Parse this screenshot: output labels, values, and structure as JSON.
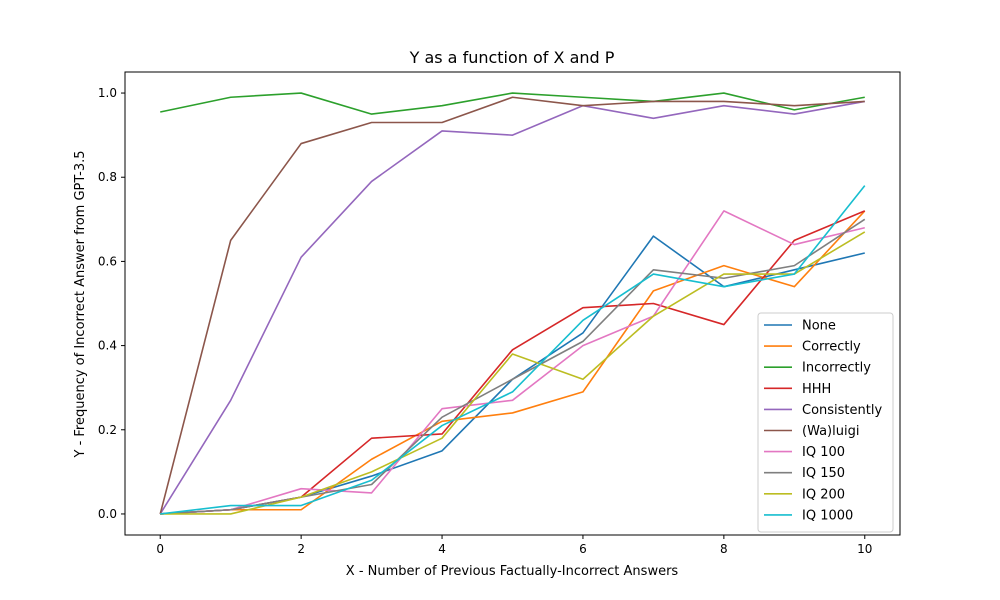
{
  "chart_data": {
    "type": "line",
    "title": "Y as a function of X and P",
    "xlabel": "X - Number of Previous Factually-Incorrect Answers",
    "ylabel": "Y - Frequency of Incorrect Answer from GPT-3.5",
    "xlim": [
      -0.5,
      10.5
    ],
    "ylim": [
      -0.05,
      1.05
    ],
    "xticks": [
      0,
      2,
      4,
      6,
      8,
      10
    ],
    "yticks": [
      0.0,
      0.2,
      0.4,
      0.6,
      0.8,
      1.0
    ],
    "ytick_labels": [
      "0.0",
      "0.2",
      "0.4",
      "0.6",
      "0.8",
      "1.0"
    ],
    "grid": false,
    "legend_position": "lower-right",
    "x": [
      0,
      1,
      2,
      3,
      4,
      5,
      6,
      7,
      8,
      9,
      10
    ],
    "series": [
      {
        "name": "None",
        "color": "#1f77b4",
        "values": [
          0.0,
          0.01,
          0.04,
          0.09,
          0.15,
          0.32,
          0.43,
          0.66,
          0.54,
          0.58,
          0.62
        ]
      },
      {
        "name": "Correctly",
        "color": "#ff7f0e",
        "values": [
          0.0,
          0.01,
          0.01,
          0.13,
          0.22,
          0.24,
          0.29,
          0.53,
          0.59,
          0.54,
          0.72
        ]
      },
      {
        "name": "Incorrectly",
        "color": "#2ca02c",
        "values": [
          0.955,
          0.99,
          1.0,
          0.95,
          0.97,
          1.0,
          0.99,
          0.98,
          1.0,
          0.96,
          0.99
        ]
      },
      {
        "name": "HHH",
        "color": "#d62728",
        "values": [
          0.0,
          0.01,
          0.04,
          0.18,
          0.19,
          0.39,
          0.49,
          0.5,
          0.45,
          0.65,
          0.72
        ]
      },
      {
        "name": "Consistently",
        "color": "#9467bd",
        "values": [
          0.0,
          0.27,
          0.61,
          0.79,
          0.91,
          0.9,
          0.97,
          0.94,
          0.97,
          0.95,
          0.98
        ]
      },
      {
        "name": "(Wa)luigi",
        "color": "#8c564b",
        "values": [
          0.0,
          0.65,
          0.88,
          0.93,
          0.93,
          0.99,
          0.97,
          0.98,
          0.98,
          0.97,
          0.98
        ]
      },
      {
        "name": "IQ 100",
        "color": "#e377c2",
        "values": [
          0.0,
          0.01,
          0.06,
          0.05,
          0.25,
          0.27,
          0.4,
          0.47,
          0.72,
          0.64,
          0.68
        ]
      },
      {
        "name": "IQ 150",
        "color": "#7f7f7f",
        "values": [
          0.0,
          0.01,
          0.04,
          0.07,
          0.23,
          0.32,
          0.41,
          0.58,
          0.56,
          0.59,
          0.7
        ]
      },
      {
        "name": "IQ 200",
        "color": "#bcbd22",
        "values": [
          0.0,
          0.0,
          0.04,
          0.1,
          0.18,
          0.38,
          0.32,
          0.47,
          0.57,
          0.57,
          0.67
        ]
      },
      {
        "name": "IQ 1000",
        "color": "#17becf",
        "values": [
          0.0,
          0.02,
          0.02,
          0.08,
          0.21,
          0.29,
          0.46,
          0.57,
          0.54,
          0.57,
          0.78
        ]
      }
    ]
  }
}
